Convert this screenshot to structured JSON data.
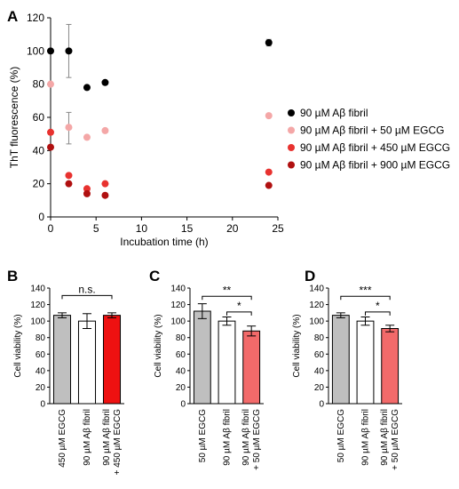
{
  "chart_data": [
    {
      "panel": "A",
      "type": "scatter",
      "xlabel": "Incubation time (h)",
      "ylabel": "ThT fluorescence (%)",
      "xlim": [
        0,
        25
      ],
      "ylim": [
        0,
        120
      ],
      "xticks": [
        0,
        5,
        10,
        15,
        20,
        25
      ],
      "yticks": [
        0,
        20,
        40,
        60,
        80,
        100,
        120
      ],
      "legend_position": "right",
      "series": [
        {
          "name": "90 µM Aβ fibril",
          "color": "#000000",
          "points": [
            {
              "x": 0,
              "y": 100
            },
            {
              "x": 2,
              "y": 100
            },
            {
              "x": 4,
              "y": 78
            },
            {
              "x": 6,
              "y": 81
            },
            {
              "x": 24,
              "y": 105
            }
          ],
          "errors": [
            {
              "x": 2,
              "lo": 84,
              "hi": 116
            },
            {
              "x": 24,
              "lo": 103,
              "hi": 107
            }
          ]
        },
        {
          "name": "90 µM Aβ fibril + 50 µM EGCG",
          "color": "#f4a7a7",
          "points": [
            {
              "x": 0,
              "y": 80
            },
            {
              "x": 2,
              "y": 54
            },
            {
              "x": 4,
              "y": 48
            },
            {
              "x": 6,
              "y": 52
            },
            {
              "x": 24,
              "y": 61
            }
          ],
          "errors": [
            {
              "x": 2,
              "lo": 44,
              "hi": 63
            }
          ]
        },
        {
          "name": "90 µM Aβ fibril + 450 µM EGCG",
          "color": "#e8322f",
          "points": [
            {
              "x": 0,
              "y": 51
            },
            {
              "x": 2,
              "y": 25
            },
            {
              "x": 4,
              "y": 17
            },
            {
              "x": 6,
              "y": 20
            },
            {
              "x": 24,
              "y": 27
            }
          ],
          "errors": []
        },
        {
          "name": "90 µM Aβ fibril + 900 µM EGCG",
          "color": "#b01010",
          "points": [
            {
              "x": 0,
              "y": 42
            },
            {
              "x": 2,
              "y": 20
            },
            {
              "x": 4,
              "y": 14
            },
            {
              "x": 6,
              "y": 13
            },
            {
              "x": 24,
              "y": 19
            }
          ],
          "errors": []
        }
      ]
    },
    {
      "panel": "B",
      "type": "bar",
      "ylabel": "Cell viability (%)",
      "ylim": [
        0,
        140
      ],
      "yticks": [
        0,
        20,
        40,
        60,
        80,
        100,
        120,
        140
      ],
      "categories": [
        "450 µM EGCG",
        "90 µM Aβ fibril",
        "90 µM Aβ fibril + 450 µM EGCG"
      ],
      "values": [
        107,
        100,
        107
      ],
      "errors": [
        3,
        9,
        3
      ],
      "colors": [
        "#bfbfbf",
        "#ffffff",
        "#ee1111"
      ],
      "significance": [
        {
          "from": 0,
          "to": 2,
          "label": "n.s."
        }
      ]
    },
    {
      "panel": "C",
      "type": "bar",
      "ylabel": "Cell viability (%)",
      "ylim": [
        0,
        140
      ],
      "yticks": [
        0,
        20,
        40,
        60,
        80,
        100,
        120,
        140
      ],
      "categories": [
        "50 µM EGCG",
        "90 µM Aβ fibril",
        "90 µM Aβ fibril + 50 µM EGCG"
      ],
      "values": [
        112,
        100,
        88
      ],
      "errors": [
        9,
        5,
        6
      ],
      "colors": [
        "#bfbfbf",
        "#ffffff",
        "#f26a6a"
      ],
      "significance": [
        {
          "from": 0,
          "to": 2,
          "label": "**"
        },
        {
          "from": 1,
          "to": 2,
          "label": "*"
        }
      ]
    },
    {
      "panel": "D",
      "type": "bar",
      "ylabel": "Cell viability (%)",
      "ylim": [
        0,
        140
      ],
      "yticks": [
        0,
        20,
        40,
        60,
        80,
        100,
        120,
        140
      ],
      "categories": [
        "50 µM EGCG",
        "90 µM Aβ fibril",
        "90 µM Aβ fibril + 50 µM EGCG"
      ],
      "values": [
        107,
        100,
        91
      ],
      "errors": [
        3,
        5,
        4
      ],
      "colors": [
        "#bfbfbf",
        "#ffffff",
        "#f26a6a"
      ],
      "significance": [
        {
          "from": 0,
          "to": 2,
          "label": "***"
        },
        {
          "from": 1,
          "to": 2,
          "label": "*"
        }
      ]
    }
  ]
}
